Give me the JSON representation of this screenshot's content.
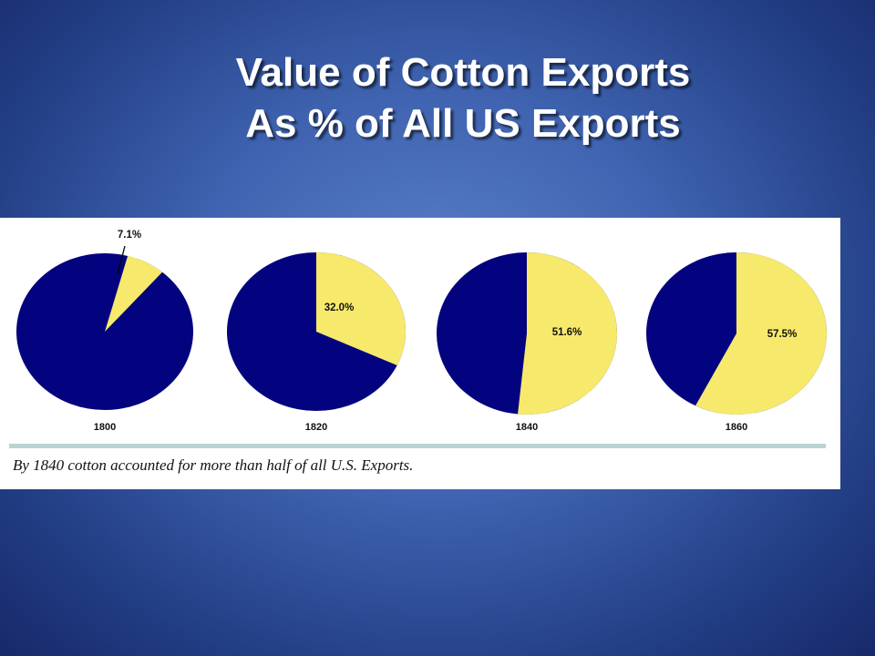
{
  "title": {
    "line1": "Value of Cotton Exports",
    "line2": "As % of All US Exports"
  },
  "caption": "By 1840 cotton accounted for more than half of all U.S. Exports.",
  "colors": {
    "cotton": "#f7e96b",
    "other": "#03037f",
    "background": "#3f63b0",
    "panel": "#ffffff",
    "divider": "#b9d3d3"
  },
  "chart_data": [
    {
      "type": "pie",
      "year": "1800",
      "slices": [
        {
          "label": "7.1%",
          "value": 7.1,
          "color": "#f7e96b"
        },
        {
          "label": "",
          "value": 92.9,
          "color": "#03037f"
        }
      ]
    },
    {
      "type": "pie",
      "year": "1820",
      "slices": [
        {
          "label": "32.0%",
          "value": 32.0,
          "color": "#f7e96b"
        },
        {
          "label": "",
          "value": 68.0,
          "color": "#03037f"
        }
      ]
    },
    {
      "type": "pie",
      "year": "1840",
      "slices": [
        {
          "label": "51.6%",
          "value": 51.6,
          "color": "#f7e96b"
        },
        {
          "label": "",
          "value": 48.4,
          "color": "#03037f"
        }
      ]
    },
    {
      "type": "pie",
      "year": "1860",
      "slices": [
        {
          "label": "57.5%",
          "value": 57.5,
          "color": "#f7e96b"
        },
        {
          "label": "",
          "value": 42.5,
          "color": "#03037f"
        }
      ]
    }
  ]
}
